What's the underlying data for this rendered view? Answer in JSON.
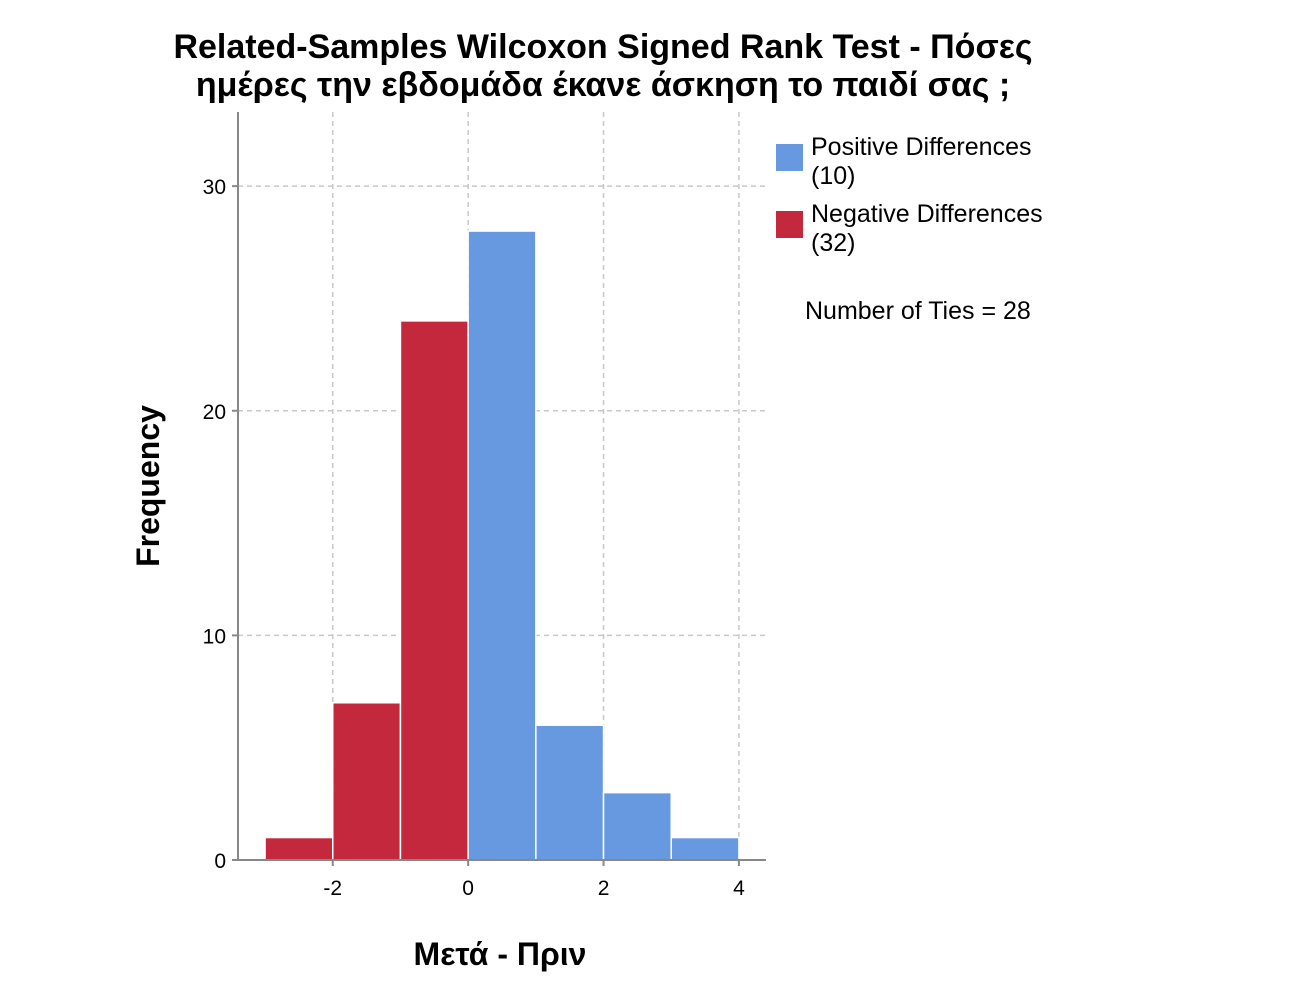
{
  "chart_data": {
    "type": "bar",
    "title_lines": [
      "Related-Samples Wilcoxon Signed Rank Test - Πόσες",
      "ημέρες την εβδομάδα έκανε άσκηση το παιδί σας ;"
    ],
    "xlabel": "Μετά - Πριν",
    "ylabel": "Frequency",
    "xlim": [
      -3.4,
      4.4
    ],
    "ylim": [
      0,
      33.3
    ],
    "x_ticks": [
      -2,
      0,
      2,
      4
    ],
    "y_ticks": [
      0,
      10,
      20,
      30
    ],
    "grid": true,
    "bin_width": 1,
    "series": [
      {
        "name": "Negative Differences",
        "color": "#c4283c",
        "bins": [
          {
            "start": -3,
            "end": -2,
            "value": 1
          },
          {
            "start": -2,
            "end": -1,
            "value": 7
          },
          {
            "start": -1,
            "end": 0,
            "value": 24
          }
        ]
      },
      {
        "name": "Positive Differences",
        "color": "#6699e0",
        "bins": [
          {
            "start": 0,
            "end": 1,
            "value": 28
          },
          {
            "start": 1,
            "end": 2,
            "value": 6
          },
          {
            "start": 2,
            "end": 3,
            "value": 3
          },
          {
            "start": 3,
            "end": 4,
            "value": 1
          }
        ]
      }
    ],
    "legend": {
      "placement": "right",
      "items": [
        {
          "name": "Positive Differences",
          "count_label": "(10)",
          "color": "#6699e0"
        },
        {
          "name": "Negative Differences",
          "count_label": "(32)",
          "color": "#c4283c"
        }
      ],
      "note": "Number of Ties = 28"
    }
  }
}
